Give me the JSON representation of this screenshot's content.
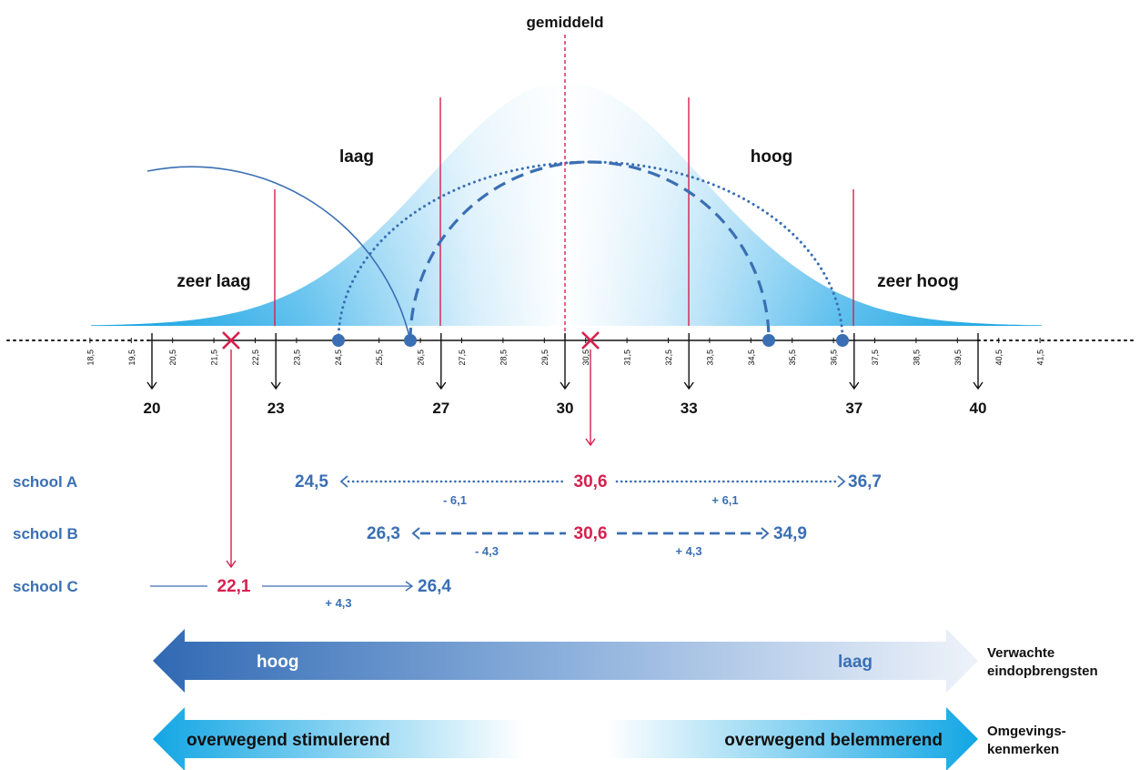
{
  "colors": {
    "blue": "#3a6fb3",
    "light_blue": "#1aa7e2",
    "red": "#d6204e",
    "black": "#111111"
  },
  "labels": {
    "gemiddeld": "gemiddeld",
    "laag": "laag",
    "hoog": "hoog",
    "zeer_laag": "zeer laag",
    "zeer_hoog": "zeer hoog"
  },
  "axis": {
    "minor_ticks": [
      "18,5",
      "19,5",
      "20,5",
      "21,5",
      "22,5",
      "23,5",
      "24,5",
      "25,5",
      "26,5",
      "27,5",
      "28,5",
      "29,5",
      "30,5",
      "31,5",
      "32,5",
      "33,5",
      "34,5",
      "35,5",
      "36,5",
      "37,5",
      "38,5",
      "39,5",
      "40,5",
      "41,5"
    ],
    "major_ticks": [
      "20",
      "23",
      "27",
      "30",
      "33",
      "37",
      "40"
    ]
  },
  "schools": {
    "a": {
      "name": "school A",
      "low": "24,5",
      "mid": "30,6",
      "high": "36,7",
      "minus": "- 6,1",
      "plus": "+ 6,1"
    },
    "b": {
      "name": "school B",
      "low": "26,3",
      "mid": "30,6",
      "high": "34,9",
      "minus": "- 4,3",
      "plus": "+ 4,3"
    },
    "c": {
      "name": "school C",
      "mid": "22,1",
      "high": "26,4",
      "plus": "+ 4,3"
    }
  },
  "arrows": {
    "expected": {
      "left": "hoog",
      "right": "laag",
      "caption_line1": "Verwachte",
      "caption_line2": "eindopbrengsten"
    },
    "environment": {
      "left": "overwegend stimulerend",
      "right": "overwegend belemmerend",
      "caption_line1": "Omgevings-",
      "caption_line2": "kenmerken"
    }
  }
}
